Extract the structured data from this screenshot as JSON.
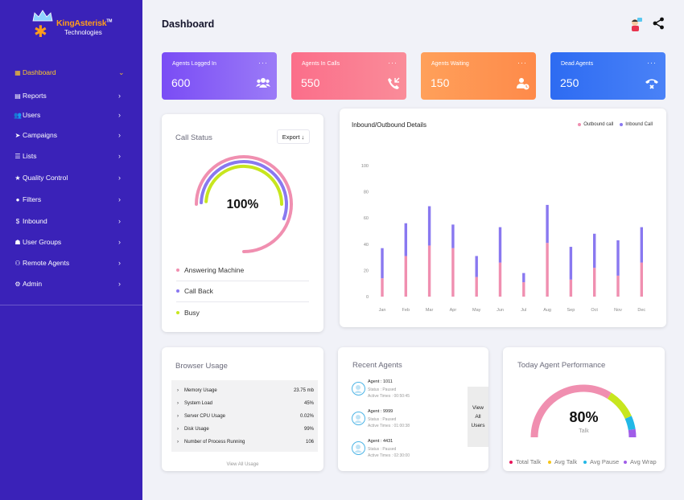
{
  "brand": {
    "name_part1": "KingAsterisk",
    "trademark": "TM",
    "name_part2": "Technologies"
  },
  "sidebar": {
    "items": [
      {
        "label": "Dashboard",
        "icon": "dashboard-icon",
        "active": true,
        "chevron": "⌄"
      },
      {
        "label": "Reports",
        "icon": "reports-icon",
        "chevron": "›"
      },
      {
        "label": "Users",
        "icon": "users-icon",
        "chevron": "›"
      },
      {
        "label": "Campaigns",
        "icon": "campaigns-icon",
        "chevron": "›"
      },
      {
        "label": "Lists",
        "icon": "lists-icon",
        "chevron": "›"
      },
      {
        "label": "Quality  Control",
        "icon": "star-icon",
        "chevron": "›"
      },
      {
        "label": "Filters",
        "icon": "filters-icon",
        "chevron": "›"
      },
      {
        "label": "Inbound",
        "icon": "dollar-icon",
        "chevron": "›"
      },
      {
        "label": "User Groups",
        "icon": "user-groups-icon",
        "chevron": "›"
      },
      {
        "label": "Remote Agents",
        "icon": "remote-agents-icon",
        "chevron": "›"
      },
      {
        "label": "Admin",
        "icon": "gear-icon",
        "chevron": "›"
      }
    ]
  },
  "header": {
    "title": "Dashboard"
  },
  "stats": [
    {
      "label": "Agents Logged In",
      "value": "600",
      "color_from": "#7a4cf5",
      "color_to": "#9b7bf7",
      "icon": "group-icon"
    },
    {
      "label": "Agents In Calls",
      "value": "550",
      "color_from": "#fb6e8a",
      "color_to": "#fa8c99",
      "icon": "phone-incoming-icon"
    },
    {
      "label": "Agents Waiting",
      "value": "150",
      "color_from": "#ffa05a",
      "color_to": "#fe8a4a",
      "icon": "user-clock-icon"
    },
    {
      "label": "Dead Agents",
      "value": "250",
      "color_from": "#2d6bf2",
      "color_to": "#4a82f7",
      "icon": "phone-hangup-icon"
    }
  ],
  "stat_menu": "···",
  "call_status": {
    "title": "Call Status",
    "export_label": "Export",
    "percent": "100%",
    "legend": [
      {
        "label": "Answering Machine",
        "color": "#f08fb0"
      },
      {
        "label": "Call Back",
        "color": "#8978f0"
      },
      {
        "label": "Busy",
        "color": "#c8e61e"
      }
    ]
  },
  "chart_data": {
    "type": "bar",
    "title": "Inbound/Outbound Details",
    "categories": [
      "Jan",
      "Feb",
      "Mar",
      "Apr",
      "May",
      "Jun",
      "Jul",
      "Aug",
      "Sep",
      "Oct",
      "Nov",
      "Dec"
    ],
    "series": [
      {
        "name": "Outbound call",
        "color": "#f08fb0",
        "values": [
          14,
          31,
          39,
          37,
          15,
          26,
          11,
          41,
          13,
          22,
          16,
          26
        ]
      },
      {
        "name": "Inbound Call",
        "color": "#8978f0",
        "values": [
          23,
          25,
          30,
          18,
          16,
          27,
          7,
          29,
          25,
          26,
          27,
          27
        ]
      }
    ],
    "ylim": [
      0,
      100
    ],
    "yticks": [
      0,
      20,
      40,
      60,
      80,
      100
    ],
    "stacked": true,
    "legend_position": "top-right",
    "grid": false
  },
  "browser_usage": {
    "title": "Browser Usage",
    "rows": [
      {
        "label": "Memory Usage",
        "value": "23.75 mb"
      },
      {
        "label": "System Load",
        "value": "45%"
      },
      {
        "label": "Server CPU Usage",
        "value": "0.02%"
      },
      {
        "label": "Disk Usage",
        "value": "99%"
      },
      {
        "label": "Number of Process Running",
        "value": "106"
      }
    ],
    "view_all": "View All Usage"
  },
  "recent_agents": {
    "title": "Recent Agents",
    "agents": [
      {
        "name": "Agent : 1011",
        "status": "Status : Paused",
        "active": "Active Times : 00:50:45"
      },
      {
        "name": "Agent : 9999",
        "status": "Status : Paused",
        "active": "Active Times : 01:00:38"
      },
      {
        "name": "Agent : 4431",
        "status": "Status : Paused",
        "active": "Active Times : 02:30:00"
      }
    ],
    "view_all_line1": "View",
    "view_all_line2": "All",
    "view_all_line3": "Users"
  },
  "performance": {
    "title": "Today Agent Performance",
    "percent": "80%",
    "sub": "Talk",
    "legend": [
      {
        "label": "Total Talk",
        "color": "#e8155a"
      },
      {
        "label": "Avg Talk",
        "color": "#f5c518"
      },
      {
        "label": "Avg Pause",
        "color": "#22b8e6"
      },
      {
        "label": "Avg Wrap",
        "color": "#a05de8"
      }
    ]
  }
}
